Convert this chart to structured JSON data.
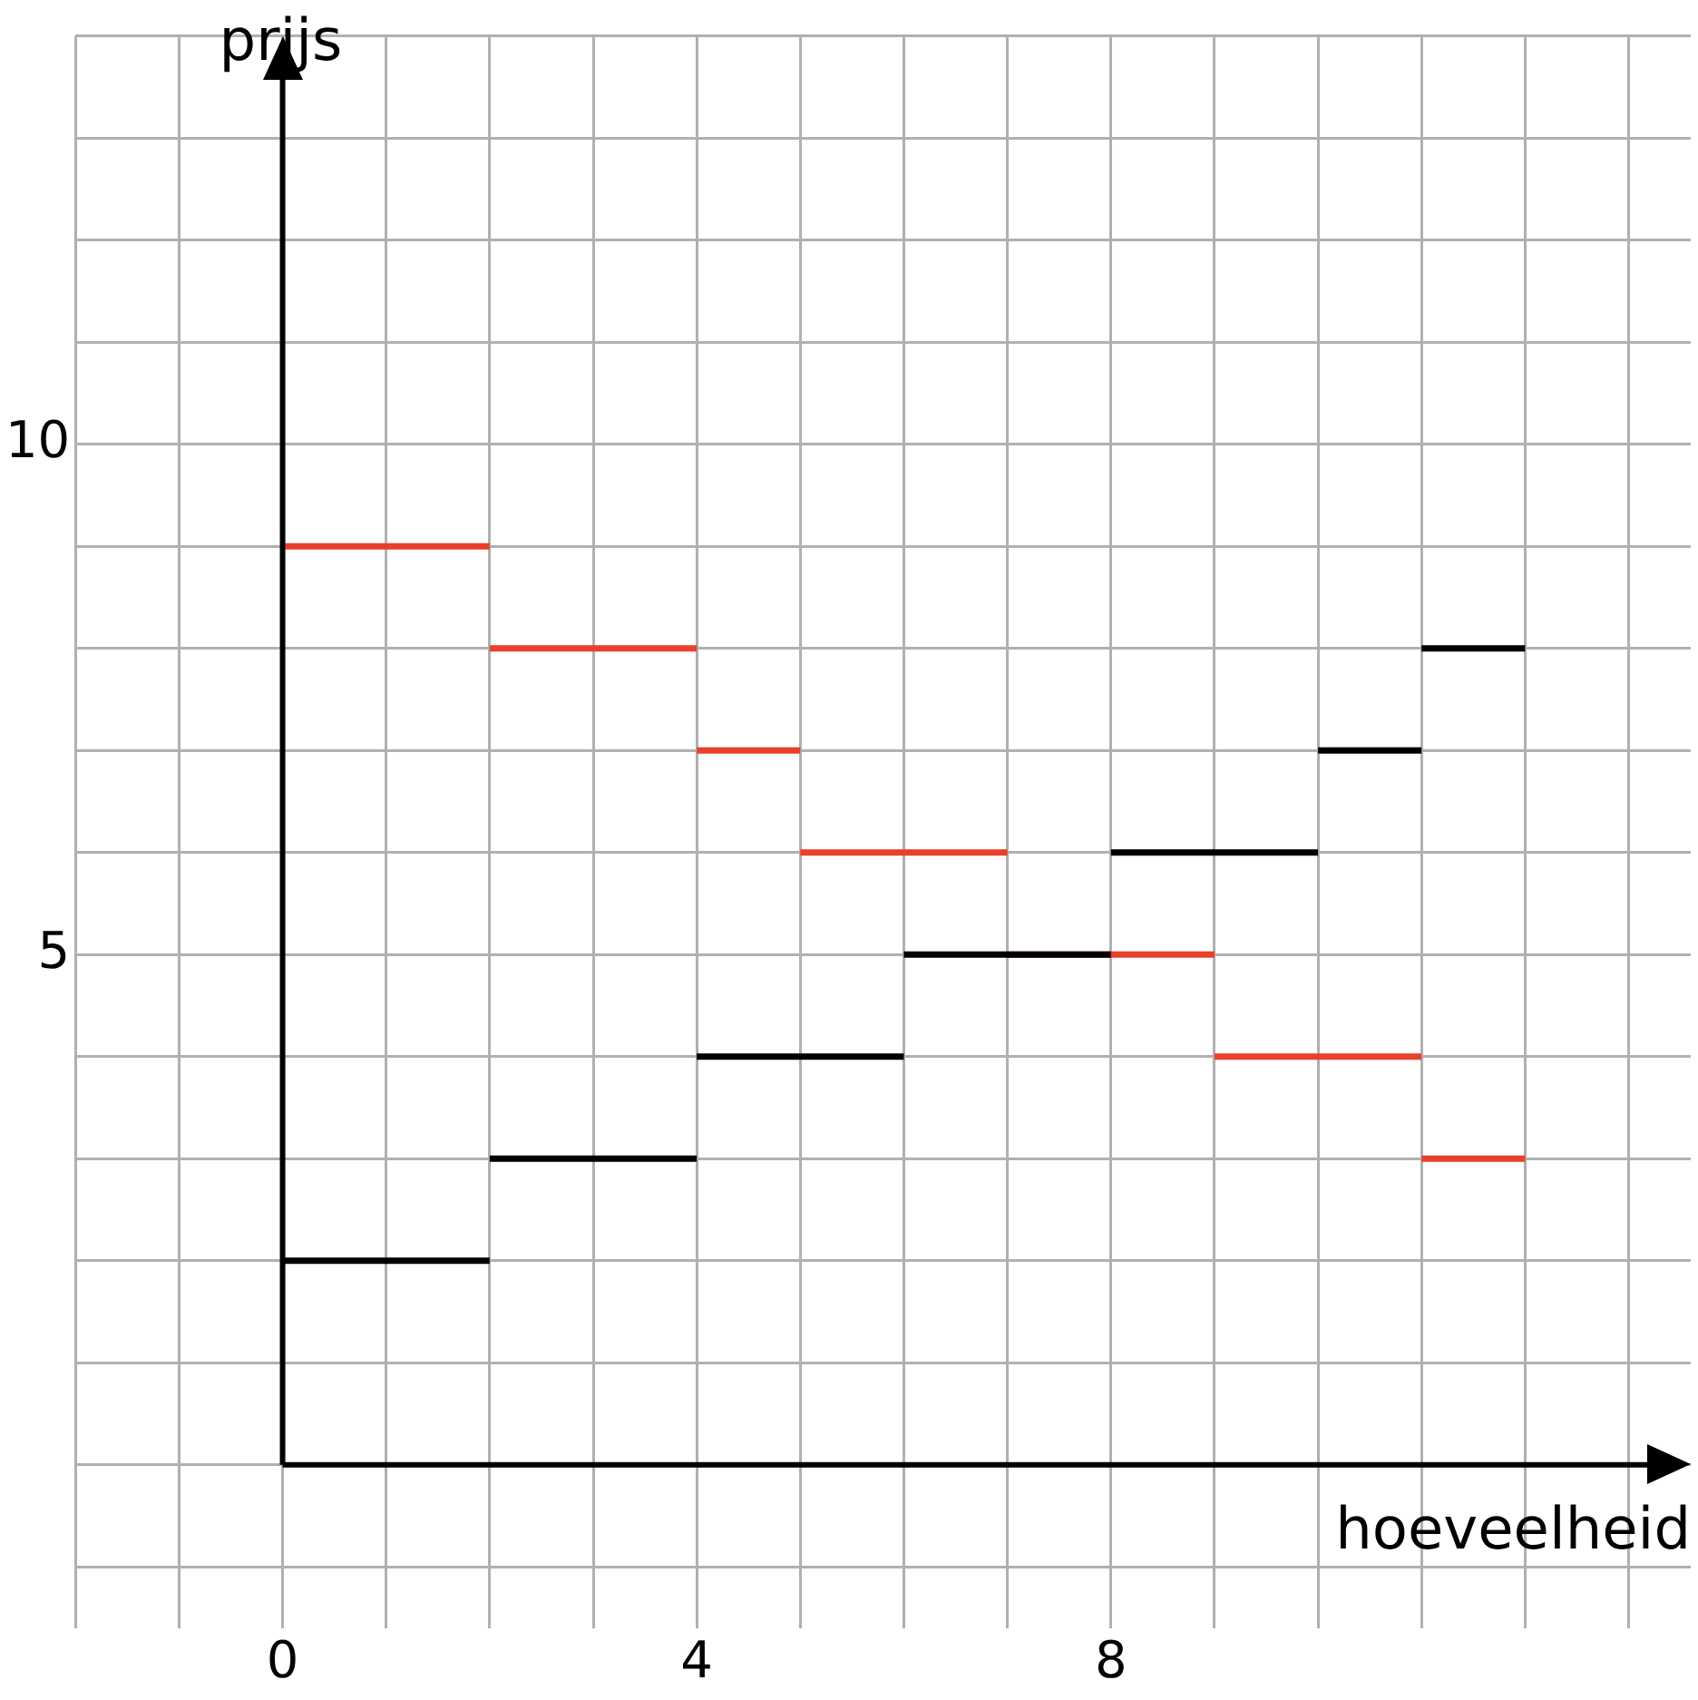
{
  "chart_data": {
    "type": "line",
    "xlabel": "hoeveelheid",
    "ylabel": "prijs",
    "xlim": [
      -2,
      13.6
    ],
    "ylim": [
      -1.6,
      14
    ],
    "xticks": [
      {
        "value": -2,
        "label": null
      },
      {
        "value": -1,
        "label": null
      },
      {
        "value": 0,
        "label": "0"
      },
      {
        "value": 1,
        "label": null
      },
      {
        "value": 2,
        "label": null
      },
      {
        "value": 3,
        "label": null
      },
      {
        "value": 4,
        "label": "4"
      },
      {
        "value": 5,
        "label": null
      },
      {
        "value": 6,
        "label": null
      },
      {
        "value": 7,
        "label": null
      },
      {
        "value": 8,
        "label": "8"
      },
      {
        "value": 9,
        "label": null
      },
      {
        "value": 10,
        "label": null
      },
      {
        "value": 11,
        "label": null
      },
      {
        "value": 12,
        "label": null
      },
      {
        "value": 13,
        "label": null
      }
    ],
    "yticks": [
      {
        "value": -1,
        "label": null
      },
      {
        "value": 0,
        "label": null
      },
      {
        "value": 1,
        "label": null
      },
      {
        "value": 2,
        "label": null
      },
      {
        "value": 3,
        "label": null
      },
      {
        "value": 4,
        "label": null
      },
      {
        "value": 5,
        "label": "5"
      },
      {
        "value": 6,
        "label": null
      },
      {
        "value": 7,
        "label": null
      },
      {
        "value": 8,
        "label": null
      },
      {
        "value": 9,
        "label": null
      },
      {
        "value": 10,
        "label": "10"
      },
      {
        "value": 11,
        "label": null
      },
      {
        "value": 12,
        "label": null
      },
      {
        "value": 13,
        "label": null
      },
      {
        "value": 14,
        "label": null
      }
    ],
    "grid": true,
    "legend": false,
    "marker": "none",
    "line_style": "solid",
    "series": [
      {
        "color": "#000000",
        "x": [
          0,
          2,
          null,
          2,
          4,
          null,
          4,
          6,
          null,
          6,
          7,
          null,
          7,
          8,
          null,
          8,
          10,
          null,
          10,
          11,
          null,
          11,
          12
        ],
        "values": [
          2,
          2,
          null,
          3,
          3,
          null,
          4,
          4,
          null,
          5,
          5,
          null,
          5,
          5,
          null,
          6,
          6,
          null,
          7,
          7,
          null,
          8,
          8
        ]
      },
      {
        "color": "#e8402a",
        "x": [
          0,
          2,
          null,
          2,
          4,
          null,
          4,
          5,
          null,
          5,
          7,
          null,
          7,
          9,
          null,
          9,
          11,
          null,
          11,
          12
        ],
        "values": [
          9,
          9,
          null,
          8,
          8,
          null,
          7,
          7,
          null,
          6,
          6,
          null,
          5,
          5,
          null,
          4,
          4,
          null,
          3,
          3
        ]
      }
    ]
  }
}
